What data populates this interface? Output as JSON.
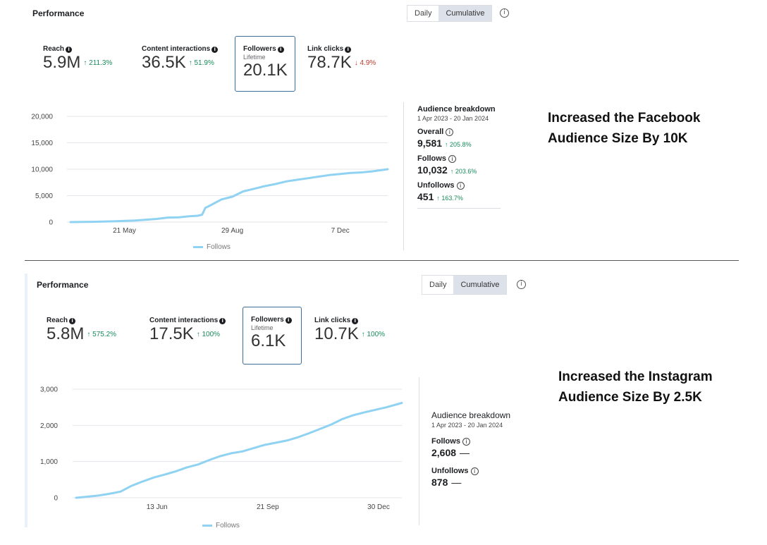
{
  "panels": [
    {
      "title": "Performance",
      "toggle": {
        "daily": "Daily",
        "cumulative": "Cumulative",
        "selected": "Cumulative"
      },
      "metrics": [
        {
          "label": "Reach",
          "value": "5.9M",
          "change": "↑ 211.3%",
          "direction": "up"
        },
        {
          "label": "Content interactions",
          "value": "36.5K",
          "change": "↑ 51.9%",
          "direction": "up"
        },
        {
          "label": "Followers",
          "sub": "Lifetime",
          "value": "20.1K",
          "selected": true
        },
        {
          "label": "Link clicks",
          "value": "78.7K",
          "change": "↓ 4.9%",
          "direction": "down"
        }
      ],
      "breakdown": {
        "title": "Audience breakdown",
        "range": "1 Apr 2023 - 20 Jan 2024",
        "items": [
          {
            "label": "Overall",
            "value": "9,581",
            "change": "↑ 205.8%"
          },
          {
            "label": "Follows",
            "value": "10,032",
            "change": "↑ 203.6%"
          },
          {
            "label": "Unfollows",
            "value": "451",
            "change": "↑ 163.7%"
          }
        ]
      },
      "caption": [
        "Increased the Facebook",
        "Audience Size By 10K"
      ],
      "legend": "Follows"
    },
    {
      "title": "Performance",
      "toggle": {
        "daily": "Daily",
        "cumulative": "Cumulative",
        "selected": "Cumulative"
      },
      "metrics": [
        {
          "label": "Reach",
          "value": "5.8M",
          "change": "↑ 575.2%",
          "direction": "up"
        },
        {
          "label": "Content interactions",
          "value": "17.5K",
          "change": "↑ 100%",
          "direction": "up"
        },
        {
          "label": "Followers",
          "sub": "Lifetime",
          "value": "6.1K",
          "selected": true
        },
        {
          "label": "Link clicks",
          "value": "10.7K",
          "change": "↑ 100%",
          "direction": "up"
        }
      ],
      "breakdown": {
        "title": "Audience breakdown",
        "range": "1 Apr 2023 - 20 Jan 2024",
        "items": [
          {
            "label": "Follows",
            "value": "2,608",
            "dash": "—"
          },
          {
            "label": "Unfollows",
            "value": "878",
            "dash": "—"
          }
        ]
      },
      "caption": [
        "Increased the Instagram",
        "Audience Size By 2.5K"
      ],
      "legend": "Follows"
    }
  ],
  "colors": {
    "line": "#90d2f2",
    "grid": "#e4e6eb",
    "up": "#188a5c",
    "down": "#c0392b",
    "selected_border": "#3a6c9a"
  },
  "chart_data": [
    {
      "type": "line",
      "series_name": "Follows",
      "x_ticks": [
        "21 May",
        "29 Aug",
        "7 Dec"
      ],
      "y_ticks": [
        "20,000",
        "15,000",
        "10,000",
        "5,000",
        "0"
      ],
      "ylim": [
        0,
        20000
      ],
      "xlim": [
        0,
        294
      ],
      "x_tick_days": [
        50,
        150,
        250
      ],
      "x": [
        0,
        20,
        40,
        60,
        80,
        90,
        100,
        110,
        118,
        122,
        125,
        130,
        140,
        150,
        160,
        170,
        180,
        190,
        200,
        210,
        220,
        230,
        240,
        250,
        260,
        270,
        280,
        294
      ],
      "y": [
        0,
        50,
        150,
        300,
        600,
        850,
        900,
        1100,
        1200,
        1400,
        2700,
        3200,
        4300,
        4800,
        5800,
        6300,
        6800,
        7200,
        7700,
        8000,
        8300,
        8600,
        8900,
        9100,
        9300,
        9400,
        9600,
        10000
      ],
      "grid": true
    },
    {
      "type": "line",
      "series_name": "Follows",
      "x_ticks": [
        "13 Jun",
        "21 Sep",
        "30 Dec"
      ],
      "y_ticks": [
        "3,000",
        "2,000",
        "1,000",
        "0"
      ],
      "ylim": [
        0,
        3000
      ],
      "xlim": [
        0,
        294
      ],
      "x_tick_days": [
        73,
        173,
        273
      ],
      "x": [
        0,
        10,
        20,
        30,
        40,
        50,
        60,
        70,
        80,
        90,
        100,
        110,
        120,
        130,
        140,
        150,
        160,
        170,
        180,
        190,
        200,
        210,
        220,
        230,
        240,
        250,
        260,
        270,
        280,
        294
      ],
      "y": [
        0,
        30,
        60,
        110,
        170,
        330,
        450,
        560,
        640,
        730,
        840,
        920,
        1040,
        1150,
        1230,
        1280,
        1370,
        1460,
        1520,
        1580,
        1670,
        1780,
        1900,
        2020,
        2170,
        2280,
        2360,
        2430,
        2500,
        2620
      ],
      "grid": true
    }
  ]
}
